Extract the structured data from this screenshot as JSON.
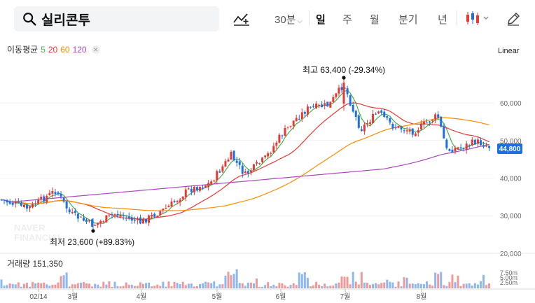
{
  "toolbar": {
    "search_query": "실리콘투",
    "interval_label": "30분",
    "periods": [
      "일",
      "주",
      "월",
      "분기",
      "년"
    ],
    "active_period": "일"
  },
  "ma_legend": {
    "title": "이동평균",
    "items": [
      {
        "label": "5",
        "color": "#4caf50"
      },
      {
        "label": "20",
        "color": "#e53935"
      },
      {
        "label": "60",
        "color": "#fb8c00"
      },
      {
        "label": "120",
        "color": "#ab47bc"
      }
    ]
  },
  "scale_label": "Linear",
  "watermark": [
    "NAVER",
    "FINANCIAL"
  ],
  "chart_data": {
    "type": "candlestick",
    "y_ticks": [
      "60,000",
      "50,000",
      "40,000",
      "30,000",
      "20,000"
    ],
    "y_tick_values": [
      60000,
      50000,
      40000,
      30000,
      20000
    ],
    "ylim": [
      17000,
      72500
    ],
    "x_tick_labels": [
      "02/14",
      "3월",
      "4월",
      "5월",
      "6월",
      "7월",
      "8월"
    ],
    "current_price": 44800,
    "current_price_label": "44,800",
    "high_annotation": {
      "label": "최고 63,400 (-29.34%)",
      "value": 63400
    },
    "low_annotation": {
      "label": "최저 23,600 (+89.83%)",
      "value": 23600
    },
    "volume_label": "거래량 151,350",
    "volume_ticks": [
      "7.50m",
      "5.00m",
      "2.50m"
    ]
  }
}
